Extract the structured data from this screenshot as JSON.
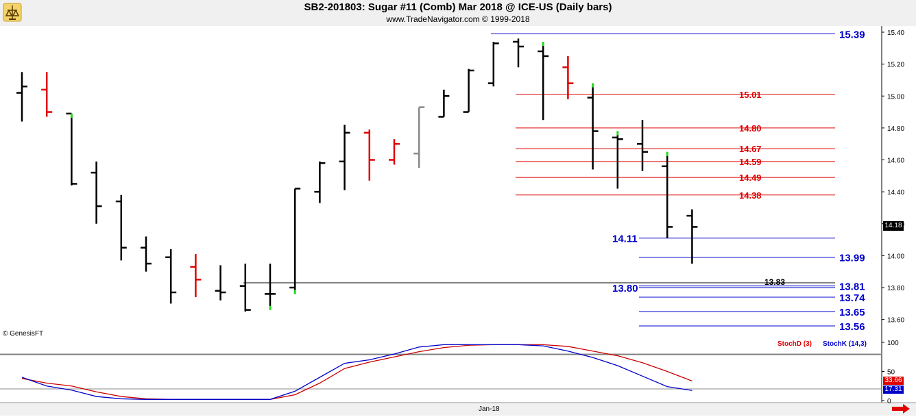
{
  "header": {
    "title": "SB2-201803:  Sugar #11 (Comb) Mar 2018 @ ICE-US  (Daily bars)",
    "subtitle": "www.TradeNavigator.com © 1999-2018"
  },
  "footer": {
    "copyright": "© GenesisFT",
    "date_label": "Jan-18"
  },
  "badges": {
    "last_price": "14.18",
    "stoch_d": "33.66",
    "stoch_k": "17.31"
  },
  "colors": {
    "up_bar": "#000000",
    "down_bar": "#e00000",
    "neutral_bar": "#888888",
    "limit_tick": "#22dd22",
    "resistance": "#e00000",
    "support": "#0000cc",
    "stoch_d": "#cc0000",
    "stoch_k": "#0000cc"
  },
  "chart_data": [
    {
      "type": "ohlc",
      "ylim": [
        13.52,
        15.44
      ],
      "yticks": [
        13.6,
        13.8,
        14.0,
        14.2,
        14.4,
        14.6,
        14.8,
        15.0,
        15.2,
        15.4
      ],
      "ytick_labels": [
        "13.60",
        "13.80",
        "14.00",
        "14.20",
        "14.40",
        "14.60",
        "14.80",
        "15.00",
        "15.20",
        "15.40"
      ],
      "bars": [
        {
          "o": 15.02,
          "h": 15.15,
          "l": 14.84,
          "c": 15.06,
          "color": "up"
        },
        {
          "o": 15.04,
          "h": 15.15,
          "l": 14.87,
          "c": 14.9,
          "color": "down"
        },
        {
          "o": 14.89,
          "h": 14.89,
          "l": 14.44,
          "c": 14.45,
          "color": "up"
        },
        {
          "o": 14.52,
          "h": 14.59,
          "l": 14.2,
          "c": 14.31,
          "color": "up"
        },
        {
          "o": 14.34,
          "h": 14.38,
          "l": 13.97,
          "c": 14.05,
          "color": "up"
        },
        {
          "o": 14.05,
          "h": 14.12,
          "l": 13.9,
          "c": 13.95,
          "color": "up"
        },
        {
          "o": 13.99,
          "h": 14.04,
          "l": 13.7,
          "c": 13.77,
          "color": "up"
        },
        {
          "o": 13.93,
          "h": 14.01,
          "l": 13.74,
          "c": 13.85,
          "color": "down"
        },
        {
          "o": 13.78,
          "h": 13.94,
          "l": 13.72,
          "c": 13.77,
          "color": "up"
        },
        {
          "o": 13.81,
          "h": 13.95,
          "l": 13.65,
          "c": 13.66,
          "color": "up"
        },
        {
          "o": 13.76,
          "h": 13.95,
          "l": 13.66,
          "c": 13.76,
          "color": "up"
        },
        {
          "o": 13.8,
          "h": 14.42,
          "l": 13.76,
          "c": 14.42,
          "color": "up"
        },
        {
          "o": 14.4,
          "h": 14.59,
          "l": 14.33,
          "c": 14.58,
          "color": "up"
        },
        {
          "o": 14.59,
          "h": 14.82,
          "l": 14.41,
          "c": 14.77,
          "color": "up"
        },
        {
          "o": 14.77,
          "h": 14.79,
          "l": 14.47,
          "c": 14.6,
          "color": "down"
        },
        {
          "o": 14.6,
          "h": 14.73,
          "l": 14.57,
          "c": 14.7,
          "color": "down"
        },
        {
          "o": 14.64,
          "h": 14.93,
          "l": 14.55,
          "c": 14.93,
          "color": "neutral"
        },
        {
          "o": 14.87,
          "h": 15.04,
          "l": 14.87,
          "c": 15.0,
          "color": "up"
        },
        {
          "o": 14.9,
          "h": 15.17,
          "l": 14.9,
          "c": 15.16,
          "color": "up"
        },
        {
          "o": 15.08,
          "h": 15.34,
          "l": 15.06,
          "c": 15.33,
          "color": "up"
        },
        {
          "o": 15.34,
          "h": 15.36,
          "l": 15.18,
          "c": 15.31,
          "color": "up"
        },
        {
          "o": 15.28,
          "h": 15.34,
          "l": 14.85,
          "c": 15.25,
          "color": "up"
        },
        {
          "o": 15.18,
          "h": 15.25,
          "l": 14.98,
          "c": 15.08,
          "color": "down"
        },
        {
          "o": 14.99,
          "h": 15.08,
          "l": 14.54,
          "c": 14.78,
          "color": "up"
        },
        {
          "o": 14.74,
          "h": 14.78,
          "l": 14.42,
          "c": 14.73,
          "color": "up"
        },
        {
          "o": 14.7,
          "h": 14.85,
          "l": 14.53,
          "c": 14.65,
          "color": "up"
        },
        {
          "o": 14.56,
          "h": 14.65,
          "l": 14.11,
          "c": 14.18,
          "color": "up"
        },
        {
          "o": 14.25,
          "h": 14.29,
          "l": 13.95,
          "c": 14.18,
          "color": "up"
        }
      ],
      "limit_ticks": [
        2,
        10,
        11,
        21,
        23,
        24,
        26
      ],
      "resistance_levels": [
        {
          "value": 15.01,
          "label": "15.01"
        },
        {
          "value": 14.8,
          "label": "14.80"
        },
        {
          "value": 14.67,
          "label": "14.67"
        },
        {
          "value": 14.59,
          "label": "14.59"
        },
        {
          "value": 14.49,
          "label": "14.49"
        },
        {
          "value": 14.38,
          "label": "14.38"
        }
      ],
      "support_levels": [
        {
          "value": 15.39,
          "label": "15.39"
        },
        {
          "value": 14.11,
          "label": "14.11"
        },
        {
          "value": 13.99,
          "label": "13.99"
        },
        {
          "value": 13.81,
          "label": "13.81"
        },
        {
          "value": 13.8,
          "label": "13.80"
        },
        {
          "value": 13.74,
          "label": "13.74"
        },
        {
          "value": 13.65,
          "label": "13.65"
        },
        {
          "value": 13.56,
          "label": "13.56"
        }
      ],
      "reference_line": {
        "value": 13.83,
        "label": "13.83"
      }
    },
    {
      "type": "line",
      "ylim": [
        0,
        100
      ],
      "yticks": [
        0,
        50,
        100
      ],
      "ytick_labels": [
        "0",
        "50",
        "100"
      ],
      "reference_lines": [
        20,
        80
      ],
      "series": [
        {
          "name": "StochD (3)",
          "values": [
            38,
            30,
            25,
            15,
            7,
            3,
            2,
            2,
            2,
            2,
            2,
            10,
            30,
            55,
            66,
            75,
            84,
            91,
            95,
            96,
            96,
            96,
            93,
            85,
            77,
            65,
            50,
            33.66
          ]
        },
        {
          "name": "StochK (14,3)",
          "values": [
            40,
            25,
            18,
            7,
            3,
            2,
            2,
            2,
            2,
            2,
            2,
            16,
            40,
            64,
            70,
            80,
            92,
            96,
            96,
            96,
            96,
            94,
            85,
            74,
            60,
            42,
            24,
            17.31
          ]
        }
      ]
    }
  ]
}
